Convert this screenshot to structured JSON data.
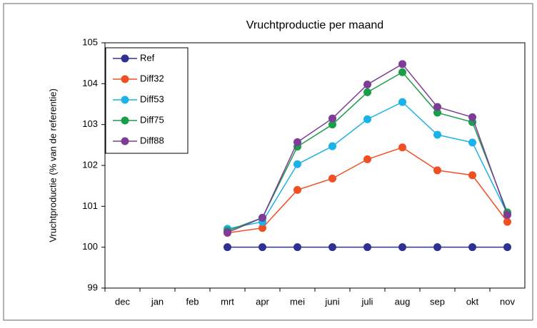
{
  "chart_data": {
    "type": "line",
    "title": "Vruchtproductie per maand",
    "y_label": "Vruchtproductie (% van de referentie)",
    "categories": [
      "dec",
      "jan",
      "feb",
      "mrt",
      "apr",
      "mei",
      "juni",
      "juli",
      "aug",
      "sep",
      "okt",
      "nov"
    ],
    "series": [
      {
        "name": "Ref",
        "color": "#2e3192",
        "values": [
          null,
          null,
          null,
          100,
          100,
          100,
          100,
          100,
          100,
          100,
          100,
          100
        ]
      },
      {
        "name": "Diff32",
        "color": "#f04e23",
        "values": [
          null,
          null,
          null,
          100.35,
          100.47,
          101.4,
          101.68,
          102.15,
          102.44,
          101.88,
          101.76,
          100.62
        ]
      },
      {
        "name": "Diff53",
        "color": "#1ab2e8",
        "values": [
          null,
          null,
          null,
          100.45,
          100.62,
          102.03,
          102.47,
          103.13,
          103.55,
          102.75,
          102.56,
          100.82
        ]
      },
      {
        "name": "Diff75",
        "color": "#1a9e4a",
        "values": [
          null,
          null,
          null,
          100.4,
          100.72,
          102.46,
          103.0,
          103.79,
          104.28,
          103.29,
          103.06,
          100.85
        ]
      },
      {
        "name": "Diff88",
        "color": "#7d3c98",
        "values": [
          null,
          null,
          null,
          100.36,
          100.72,
          102.57,
          103.15,
          103.98,
          104.48,
          103.43,
          103.18,
          100.79
        ]
      }
    ],
    "ylim": [
      99,
      105
    ],
    "yticks": [
      99,
      100,
      101,
      102,
      103,
      104,
      105
    ],
    "grid": false,
    "legend": "upper-left"
  }
}
